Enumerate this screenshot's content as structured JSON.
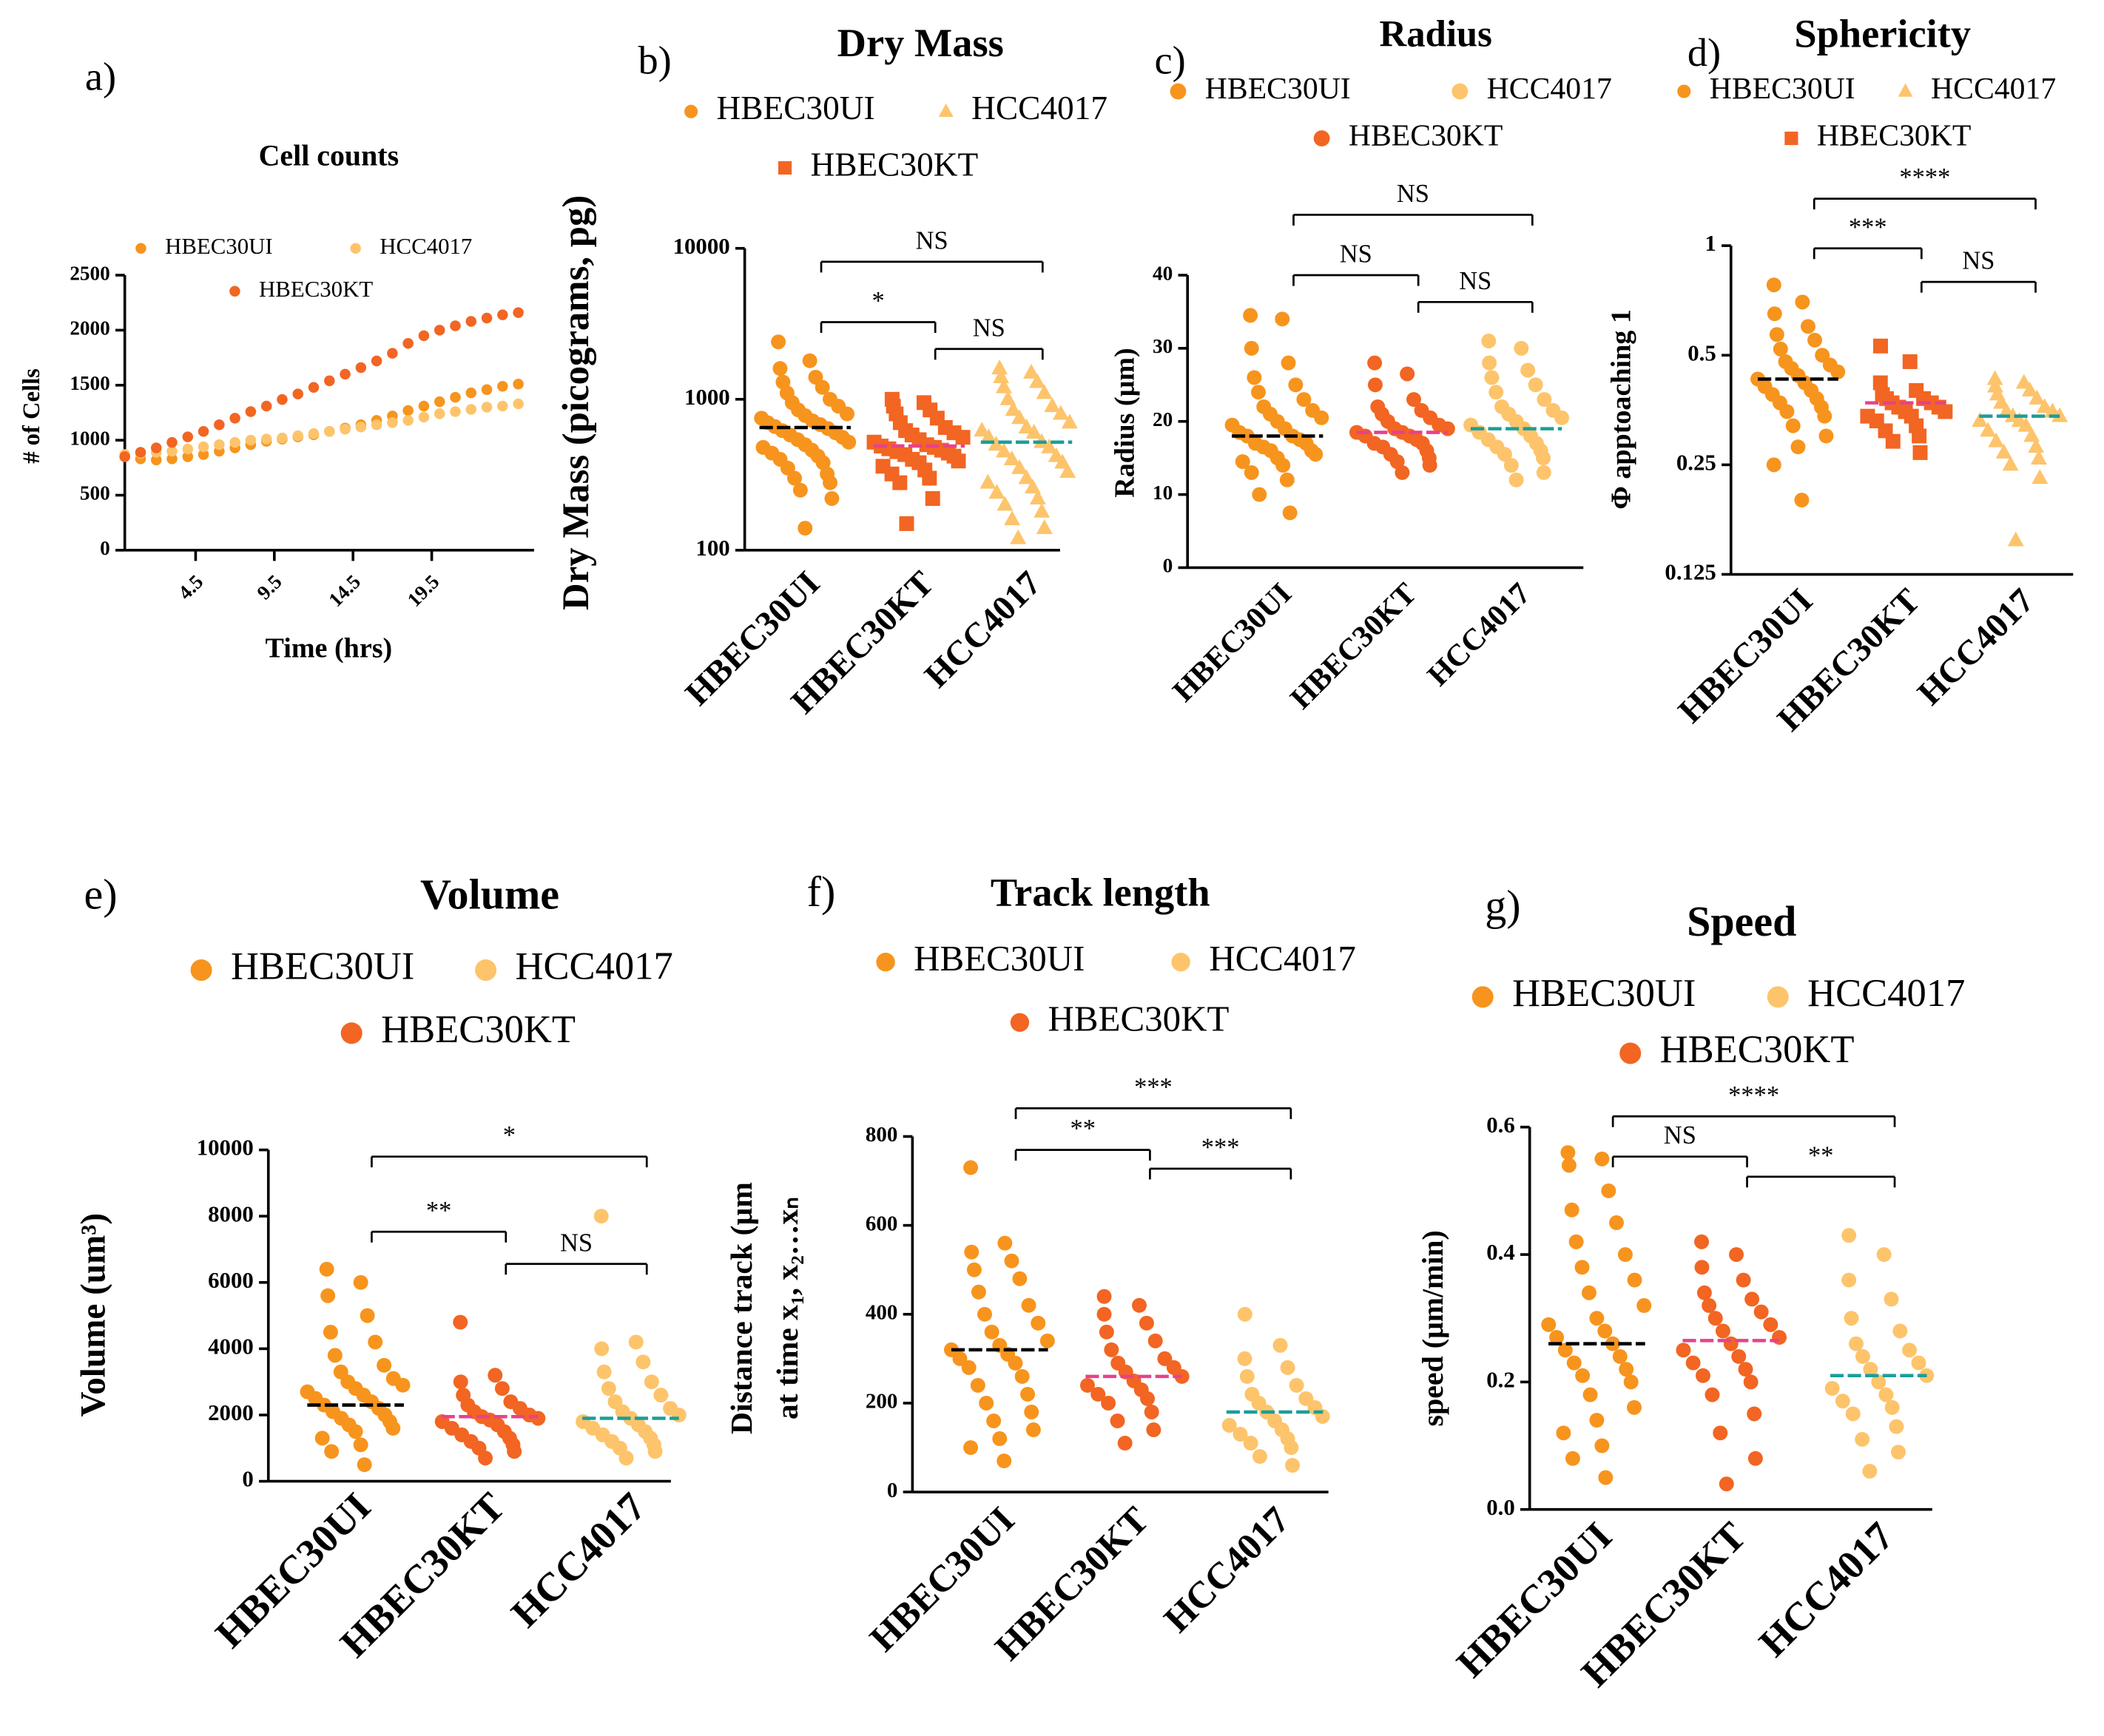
{
  "chart_data": [
    {
      "type": "line",
      "label": "a)",
      "title": "Cell counts",
      "x_label": "Time (hrs)",
      "y_label": "# of Cells",
      "x": [
        0,
        1,
        2,
        3,
        4,
        5,
        6,
        7,
        8,
        9,
        10,
        11,
        12,
        13,
        14,
        15,
        16,
        17,
        18,
        19,
        20,
        21,
        22,
        23,
        24,
        25
      ],
      "xlim": [
        0,
        26
      ],
      "xticks": [
        4.5,
        9.5,
        14.5,
        19.5
      ],
      "ylim": [
        0,
        2500
      ],
      "yticks": [
        0,
        500,
        1000,
        1500,
        2000,
        2500
      ],
      "series": [
        {
          "name": "HBEC30UI",
          "color": "#f7941d",
          "values": [
            850,
            830,
            820,
            830,
            850,
            870,
            900,
            930,
            960,
            990,
            1010,
            1030,
            1050,
            1080,
            1110,
            1140,
            1180,
            1220,
            1270,
            1310,
            1350,
            1390,
            1430,
            1460,
            1490,
            1510
          ]
        },
        {
          "name": "HCC4017",
          "color": "#fdc46b",
          "values": [
            870,
            880,
            890,
            900,
            920,
            940,
            960,
            980,
            1000,
            1010,
            1020,
            1040,
            1060,
            1080,
            1100,
            1120,
            1140,
            1160,
            1180,
            1210,
            1240,
            1260,
            1280,
            1300,
            1310,
            1330
          ]
        },
        {
          "name": "HBEC30KT",
          "color": "#f26522",
          "values": [
            850,
            890,
            930,
            980,
            1030,
            1080,
            1140,
            1200,
            1260,
            1310,
            1370,
            1420,
            1480,
            1540,
            1600,
            1660,
            1720,
            1790,
            1880,
            1950,
            2000,
            2040,
            2080,
            2110,
            2140,
            2160
          ]
        }
      ]
    },
    {
      "type": "strip",
      "label": "b)",
      "title": "Dry Mass",
      "y_label": "Dry Mass (picograms, pg)",
      "categories": [
        "HBEC30UI",
        "HBEC30KT",
        "HCC4017"
      ],
      "log_scale": true,
      "ylim": [
        100,
        10000
      ],
      "yticks": [
        100,
        1000,
        10000
      ],
      "series": [
        {
          "name": "HBEC30UI",
          "color": "#f7941d",
          "marker": "circle",
          "mean": 650,
          "mean_color": "#000000",
          "values": [
            2400,
            1800,
            1600,
            1400,
            1300,
            1200,
            1100,
            1000,
            950,
            900,
            850,
            800,
            780,
            750,
            720,
            700,
            680,
            660,
            640,
            620,
            600,
            580,
            560,
            540,
            520,
            500,
            480,
            460,
            440,
            420,
            400,
            380,
            350,
            320,
            300,
            280,
            250,
            220,
            140
          ]
        },
        {
          "name": "HCC4017",
          "color": "#fdc46b",
          "marker": "triangle",
          "mean": 520,
          "mean_color": "#1a9e9a",
          "values": [
            1600,
            1500,
            1400,
            1300,
            1200,
            1100,
            1000,
            900,
            850,
            800,
            750,
            700,
            650,
            620,
            600,
            560,
            520,
            500,
            480,
            450,
            420,
            400,
            380,
            350,
            330,
            300,
            280,
            260,
            240,
            220,
            200,
            180,
            160,
            140,
            120
          ]
        },
        {
          "name": "HBEC30KT",
          "color": "#f26522",
          "marker": "square",
          "mean": 490,
          "mean_color": "#e8418c",
          "values": [
            1000,
            950,
            900,
            850,
            800,
            750,
            700,
            650,
            620,
            600,
            580,
            560,
            540,
            520,
            500,
            490,
            480,
            470,
            460,
            450,
            440,
            430,
            420,
            400,
            390,
            380,
            360,
            340,
            320,
            300,
            280,
            220,
            150
          ]
        }
      ],
      "comparisons": [
        {
          "groups": [
            "HBEC30UI",
            "HBEC30KT"
          ],
          "label": "*"
        },
        {
          "groups": [
            "HBEC30UI",
            "HCC4017"
          ],
          "label": "NS"
        },
        {
          "groups": [
            "HBEC30KT",
            "HCC4017"
          ],
          "label": "NS"
        }
      ]
    },
    {
      "type": "strip",
      "label": "c)",
      "title": "Radius",
      "y_label": "Radius (μm)",
      "categories": [
        "HBEC30UI",
        "HBEC30KT",
        "HCC4017"
      ],
      "ylim": [
        0,
        40
      ],
      "yticks": [
        0,
        10,
        20,
        30,
        40
      ],
      "series": [
        {
          "name": "HBEC30UI",
          "color": "#f7941d",
          "marker": "circle",
          "mean": 18,
          "mean_color": "#000000",
          "values": [
            34.5,
            34,
            30,
            28,
            26,
            25,
            24,
            23,
            22,
            21.5,
            21,
            20.5,
            20,
            19.5,
            19,
            18.5,
            18,
            18,
            17.5,
            17,
            17,
            16.5,
            16,
            16,
            15.5,
            15,
            14.5,
            14,
            13,
            12,
            10,
            7.5
          ]
        },
        {
          "name": "HCC4017",
          "color": "#fdc46b",
          "marker": "circle",
          "mean": 19,
          "mean_color": "#1a9e9a",
          "values": [
            31,
            30,
            28,
            27,
            26,
            25,
            24,
            23,
            22,
            21.5,
            21,
            20.5,
            20,
            19.5,
            19,
            18.5,
            18,
            17.5,
            17,
            16.5,
            16,
            15.5,
            15,
            14,
            13,
            12
          ]
        },
        {
          "name": "HBEC30KT",
          "color": "#f26522",
          "marker": "circle",
          "mean": 18.5,
          "mean_color": "#e8418c",
          "values": [
            28,
            26.5,
            25,
            23,
            22,
            21.5,
            21,
            20.5,
            20,
            19.5,
            19,
            19,
            18.5,
            18.5,
            18,
            18,
            17.5,
            17,
            17,
            16.5,
            16,
            15.5,
            15,
            14.5,
            14,
            13
          ]
        }
      ],
      "comparisons": [
        {
          "groups": [
            "HBEC30UI",
            "HCC4017"
          ],
          "label": "NS"
        },
        {
          "groups": [
            "HBEC30UI",
            "HBEC30KT"
          ],
          "label": "NS"
        },
        {
          "groups": [
            "HBEC30KT",
            "HCC4017"
          ],
          "label": "NS"
        }
      ]
    },
    {
      "type": "strip",
      "label": "d)",
      "title": "Sphericity",
      "y_label": "Φ apptoaching 1",
      "categories": [
        "HBEC30UI",
        "HBEC30KT",
        "HCC4017"
      ],
      "log_scale": true,
      "ylim": [
        0.125,
        1
      ],
      "yticks": [
        0.125,
        0.25,
        0.5,
        1
      ],
      "series": [
        {
          "name": "HBEC30UI",
          "color": "#f7941d",
          "marker": "circle",
          "mean": 0.43,
          "mean_color": "#000000",
          "values": [
            0.78,
            0.7,
            0.65,
            0.6,
            0.57,
            0.55,
            0.52,
            0.5,
            0.48,
            0.47,
            0.46,
            0.45,
            0.44,
            0.43,
            0.42,
            0.41,
            0.4,
            0.39,
            0.38,
            0.37,
            0.36,
            0.35,
            0.34,
            0.32,
            0.3,
            0.28,
            0.25,
            0.2
          ]
        },
        {
          "name": "HCC4017",
          "color": "#fdc46b",
          "marker": "triangle",
          "mean": 0.34,
          "mean_color": "#1a9e9a",
          "values": [
            0.43,
            0.42,
            0.41,
            0.4,
            0.39,
            0.38,
            0.37,
            0.36,
            0.35,
            0.35,
            0.34,
            0.34,
            0.33,
            0.33,
            0.32,
            0.31,
            0.3,
            0.29,
            0.28,
            0.27,
            0.26,
            0.25,
            0.23,
            0.155
          ]
        },
        {
          "name": "HBEC30KT",
          "color": "#f26522",
          "marker": "square",
          "mean": 0.37,
          "mean_color": "#e8418c",
          "values": [
            0.53,
            0.48,
            0.42,
            0.4,
            0.39,
            0.38,
            0.38,
            0.37,
            0.37,
            0.36,
            0.36,
            0.35,
            0.35,
            0.34,
            0.34,
            0.33,
            0.32,
            0.31,
            0.3,
            0.29,
            0.27
          ]
        }
      ],
      "comparisons": [
        {
          "groups": [
            "HBEC30UI",
            "HCC4017"
          ],
          "label": "****"
        },
        {
          "groups": [
            "HBEC30UI",
            "HBEC30KT"
          ],
          "label": "***"
        },
        {
          "groups": [
            "HBEC30KT",
            "HCC4017"
          ],
          "label": "NS"
        }
      ]
    },
    {
      "type": "strip",
      "label": "e)",
      "title": "Volume",
      "y_label": "Volume (um³)",
      "categories": [
        "HBEC30UI",
        "HBEC30KT",
        "HCC4017"
      ],
      "ylim": [
        0,
        10000
      ],
      "yticks": [
        0,
        2000,
        4000,
        6000,
        8000,
        10000
      ],
      "series": [
        {
          "name": "HBEC30UI",
          "color": "#f7941d",
          "marker": "circle",
          "mean": 2300,
          "mean_color": "#000000",
          "values": [
            6400,
            6000,
            5600,
            5000,
            4500,
            4200,
            3800,
            3500,
            3300,
            3100,
            3000,
            2900,
            2800,
            2700,
            2600,
            2500,
            2400,
            2300,
            2200,
            2100,
            2000,
            1900,
            1800,
            1700,
            1600,
            1500,
            1300,
            1100,
            900,
            500
          ]
        },
        {
          "name": "HCC4017",
          "color": "#fdc46b",
          "marker": "circle",
          "mean": 1900,
          "mean_color": "#1a9e9a",
          "values": [
            8000,
            4200,
            4000,
            3600,
            3300,
            3000,
            2800,
            2600,
            2400,
            2200,
            2100,
            2000,
            1900,
            1800,
            1700,
            1600,
            1500,
            1400,
            1300,
            1200,
            1100,
            1000,
            900,
            700
          ]
        },
        {
          "name": "HBEC30KT",
          "color": "#f26522",
          "marker": "circle",
          "mean": 1950,
          "mean_color": "#e8418c",
          "values": [
            4800,
            3200,
            3000,
            2800,
            2600,
            2400,
            2300,
            2200,
            2100,
            2000,
            1950,
            1900,
            1850,
            1800,
            1700,
            1600,
            1500,
            1400,
            1300,
            1200,
            1100,
            1000,
            900,
            700
          ]
        }
      ],
      "comparisons": [
        {
          "groups": [
            "HBEC30UI",
            "HCC4017"
          ],
          "label": "*"
        },
        {
          "groups": [
            "HBEC30UI",
            "HBEC30KT"
          ],
          "label": "**"
        },
        {
          "groups": [
            "HBEC30KT",
            "HCC4017"
          ],
          "label": "NS"
        }
      ]
    },
    {
      "type": "strip",
      "label": "f)",
      "title": "Track length",
      "y_label": [
        "Distance track  (μm",
        "at time x₁, x₂…xₙ"
      ],
      "categories": [
        "HBEC30UI",
        "HBEC30KT",
        "HCC4017"
      ],
      "ylim": [
        0,
        800
      ],
      "yticks": [
        0,
        200,
        400,
        600,
        800
      ],
      "series": [
        {
          "name": "HBEC30UI",
          "color": "#f7941d",
          "marker": "circle",
          "mean": 320,
          "mean_color": "#000000",
          "values": [
            730,
            560,
            540,
            520,
            500,
            480,
            450,
            420,
            400,
            380,
            360,
            340,
            330,
            320,
            310,
            300,
            290,
            280,
            260,
            240,
            220,
            200,
            180,
            160,
            140,
            120,
            100,
            70
          ]
        },
        {
          "name": "HCC4017",
          "color": "#fdc46b",
          "marker": "circle",
          "mean": 180,
          "mean_color": "#1a9e9a",
          "values": [
            400,
            330,
            300,
            280,
            260,
            240,
            220,
            210,
            200,
            190,
            180,
            170,
            160,
            150,
            140,
            130,
            120,
            110,
            100,
            80,
            60
          ]
        },
        {
          "name": "HBEC30KT",
          "color": "#f26522",
          "marker": "circle",
          "mean": 260,
          "mean_color": "#e8418c",
          "values": [
            440,
            420,
            400,
            380,
            360,
            340,
            320,
            300,
            290,
            280,
            270,
            260,
            250,
            240,
            230,
            220,
            210,
            200,
            180,
            160,
            140,
            110
          ]
        }
      ],
      "comparisons": [
        {
          "groups": [
            "HBEC30UI",
            "HCC4017"
          ],
          "label": "***"
        },
        {
          "groups": [
            "HBEC30UI",
            "HBEC30KT"
          ],
          "label": "**"
        },
        {
          "groups": [
            "HBEC30KT",
            "HCC4017"
          ],
          "label": "***"
        }
      ]
    },
    {
      "type": "strip",
      "label": "g)",
      "title": "Speed",
      "y_label": "speed (μm/min)",
      "categories": [
        "HBEC30UI",
        "HBEC30KT",
        "HCC4017"
      ],
      "ylim": [
        0,
        0.6
      ],
      "yticks": [
        {
          "value": 0,
          "label": "0.0"
        },
        0.2,
        0.4,
        0.6
      ],
      "series": [
        {
          "name": "HBEC30UI",
          "color": "#f7941d",
          "marker": "circle",
          "mean": 0.26,
          "mean_color": "#000000",
          "values": [
            0.56,
            0.55,
            0.54,
            0.5,
            0.47,
            0.45,
            0.42,
            0.4,
            0.38,
            0.36,
            0.34,
            0.32,
            0.3,
            0.29,
            0.28,
            0.27,
            0.26,
            0.25,
            0.24,
            0.23,
            0.22,
            0.21,
            0.2,
            0.18,
            0.16,
            0.14,
            0.12,
            0.1,
            0.08,
            0.05
          ]
        },
        {
          "name": "HCC4017",
          "color": "#fdc46b",
          "marker": "circle",
          "mean": 0.21,
          "mean_color": "#1a9e9a",
          "values": [
            0.43,
            0.4,
            0.36,
            0.33,
            0.3,
            0.28,
            0.26,
            0.25,
            0.24,
            0.23,
            0.22,
            0.21,
            0.2,
            0.19,
            0.18,
            0.17,
            0.16,
            0.15,
            0.13,
            0.11,
            0.09,
            0.06
          ]
        },
        {
          "name": "HBEC30KT",
          "color": "#f26522",
          "marker": "circle",
          "mean": 0.265,
          "mean_color": "#e8418c",
          "values": [
            0.42,
            0.4,
            0.38,
            0.36,
            0.34,
            0.33,
            0.32,
            0.31,
            0.3,
            0.29,
            0.28,
            0.27,
            0.26,
            0.25,
            0.24,
            0.23,
            0.22,
            0.21,
            0.2,
            0.18,
            0.15,
            0.12,
            0.08,
            0.04
          ]
        }
      ],
      "comparisons": [
        {
          "groups": [
            "HBEC30UI",
            "HCC4017"
          ],
          "label": "****"
        },
        {
          "groups": [
            "HBEC30UI",
            "HBEC30KT"
          ],
          "label": "NS"
        },
        {
          "groups": [
            "HBEC30KT",
            "HCC4017"
          ],
          "label": "**"
        }
      ]
    }
  ]
}
